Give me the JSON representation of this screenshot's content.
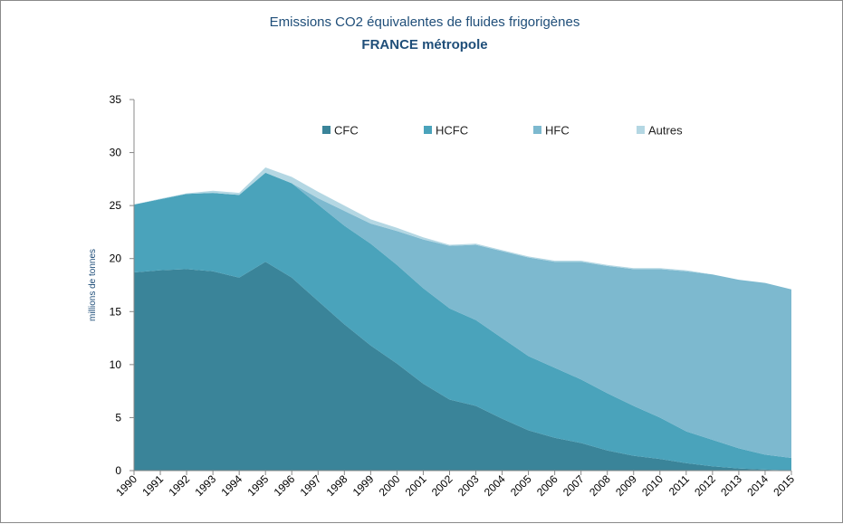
{
  "chart_data": {
    "type": "area",
    "stacked": true,
    "title": "Emissions CO2 équivalentes de fluides frigorigènes",
    "subtitle": "FRANCE métropole",
    "xlabel": "",
    "ylabel": "millions de tonnes",
    "ylim": [
      0,
      35
    ],
    "yticks": [
      0,
      5,
      10,
      15,
      20,
      25,
      30,
      35
    ],
    "grid": false,
    "legend_position": "top-center",
    "x": [
      "1990",
      "1991",
      "1992",
      "1993",
      "1994",
      "1995",
      "1996",
      "1997",
      "1998",
      "1999",
      "2000",
      "2001",
      "2002",
      "2003",
      "2004",
      "2005",
      "2006",
      "2007",
      "2008",
      "2009",
      "2010",
      "2011",
      "2012",
      "2013",
      "2014",
      "2015"
    ],
    "series": [
      {
        "name": "CFC",
        "color": "#3a8499",
        "values": [
          18.7,
          18.9,
          19.0,
          18.8,
          18.2,
          19.7,
          18.2,
          16.0,
          13.8,
          11.8,
          10.1,
          8.2,
          6.7,
          6.1,
          4.9,
          3.8,
          3.1,
          2.6,
          1.9,
          1.4,
          1.1,
          0.7,
          0.4,
          0.2,
          0.1,
          0.0
        ]
      },
      {
        "name": "HCFC",
        "color": "#4aa3bb",
        "values": [
          6.4,
          6.7,
          7.1,
          7.4,
          7.8,
          8.4,
          8.9,
          9.1,
          9.3,
          9.6,
          9.3,
          9.0,
          8.6,
          8.1,
          7.6,
          7.0,
          6.6,
          6.0,
          5.4,
          4.7,
          3.9,
          3.0,
          2.5,
          1.9,
          1.4,
          1.2
        ]
      },
      {
        "name": "HFC",
        "color": "#7db9cf",
        "values": [
          0.0,
          0.0,
          0.0,
          0.0,
          0.0,
          0.0,
          0.0,
          0.6,
          1.4,
          1.9,
          3.2,
          4.6,
          5.9,
          7.1,
          8.2,
          9.3,
          10.0,
          11.1,
          12.0,
          12.9,
          14.0,
          15.1,
          15.6,
          15.9,
          16.2,
          15.9
        ]
      },
      {
        "name": "Autres",
        "color": "#b4d7e3",
        "values": [
          0.0,
          0.05,
          0.05,
          0.2,
          0.2,
          0.5,
          0.6,
          0.6,
          0.5,
          0.4,
          0.3,
          0.2,
          0.1,
          0.1,
          0.1,
          0.1,
          0.1,
          0.1,
          0.1,
          0.1,
          0.1,
          0.1,
          0.0,
          0.0,
          0.0,
          0.0
        ]
      }
    ]
  }
}
